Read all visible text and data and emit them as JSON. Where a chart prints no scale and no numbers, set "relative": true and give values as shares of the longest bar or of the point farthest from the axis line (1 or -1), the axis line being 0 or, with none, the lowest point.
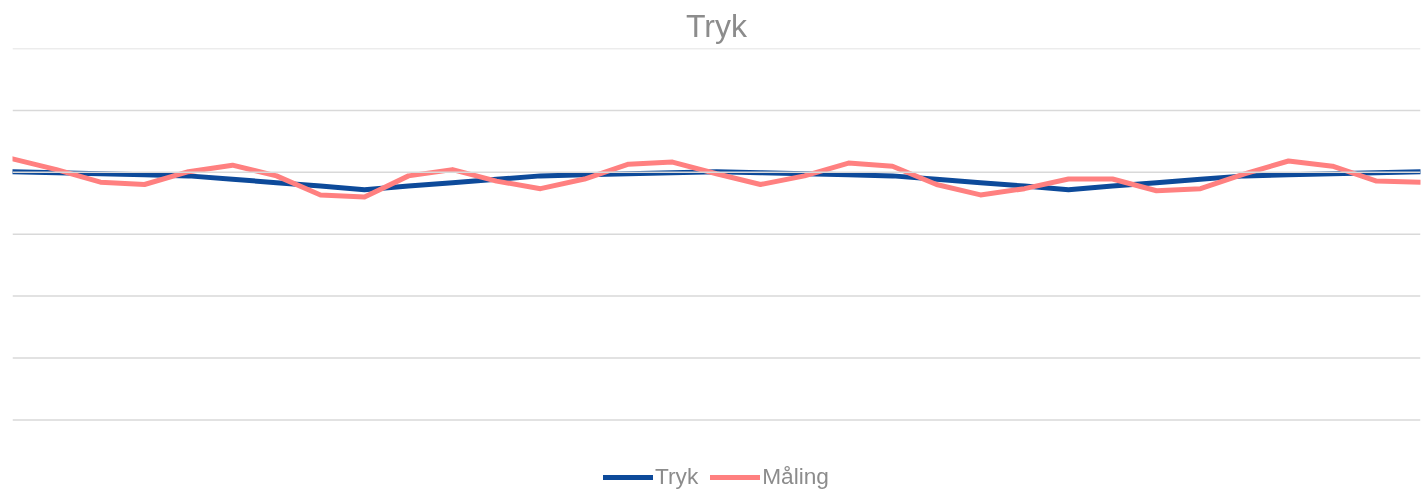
{
  "chart_data": {
    "type": "line",
    "title": "Tryk",
    "relative": true,
    "grid": "y",
    "legend": "bottom",
    "line_style": "solid",
    "categories": [
      null,
      null,
      null,
      null,
      null,
      null,
      null,
      null,
      null,
      null,
      null,
      null,
      null,
      null,
      null,
      null,
      null,
      null,
      null,
      null,
      null,
      null,
      null,
      null,
      null,
      null,
      null,
      null,
      null,
      null,
      null,
      null,
      null
    ],
    "series": [
      {
        "name": "Tryk",
        "color": "#0d4a9a",
        "values": [
          0.951,
          0.947,
          0.943,
          0.939,
          0.935,
          0.922,
          0.909,
          0.896,
          0.882,
          0.896,
          0.909,
          0.922,
          0.935,
          0.939,
          0.943,
          0.947,
          0.951,
          0.947,
          0.943,
          0.939,
          0.935,
          0.922,
          0.909,
          0.896,
          0.882,
          0.896,
          0.909,
          0.922,
          0.935,
          0.939,
          0.943,
          0.947,
          0.951
        ]
      },
      {
        "name": "Måling",
        "color": "#ff8080",
        "values": [
          1.0,
          0.959,
          0.911,
          0.902,
          0.951,
          0.976,
          0.935,
          0.862,
          0.854,
          0.935,
          0.959,
          0.915,
          0.886,
          0.923,
          0.98,
          0.988,
          0.943,
          0.902,
          0.935,
          0.984,
          0.972,
          0.902,
          0.862,
          0.886,
          0.923,
          0.923,
          0.878,
          0.886,
          0.943,
          0.992,
          0.972,
          0.915,
          0.911
        ]
      }
    ]
  }
}
